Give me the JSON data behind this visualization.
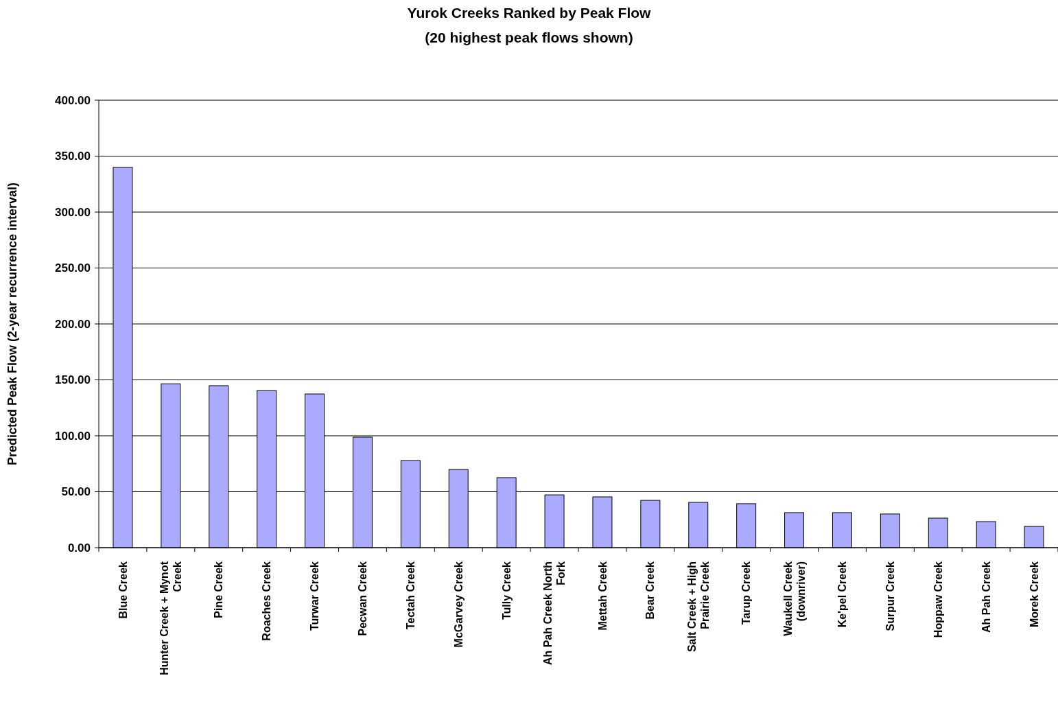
{
  "chart_data": {
    "type": "bar",
    "title": "Yurok Creeks Ranked by Peak Flow",
    "subtitle": "(20 highest peak flows shown)",
    "ylabel": "Predicted Peak Flow (2-year recurrence interval)",
    "categories": [
      "Blue Creek",
      "Hunter Creek + Mynot Creek",
      "Pine Creek",
      "Roaches Creek",
      "Turwar Creek",
      "Pecwan Creek",
      "Tectah Creek",
      "McGarvey Creek",
      "Tully Creek",
      "Ah Pah Creek North Fork",
      "Mettah Creek",
      "Bear Creek",
      "Salt Creek + High Prairie Creek",
      "Tarup Creek",
      "Waukell Creek (downriver)",
      "Ke'pel Creek",
      "Surpur Creek",
      "Hoppaw Creek",
      "Ah Pah Creek",
      "Morek Creek"
    ],
    "values": [
      340,
      146.5,
      144.8,
      140.5,
      137.4,
      98.8,
      77.9,
      69.9,
      62.6,
      47.2,
      45.4,
      42.3,
      40.5,
      39.3,
      31.3,
      31.3,
      30.1,
      26.4,
      23.3,
      19
    ],
    "color": "#aaaaff",
    "ylim": [
      0,
      400
    ],
    "yticks": [
      {
        "value": 0,
        "label": "0.00"
      },
      {
        "value": 50,
        "label": "50.00"
      },
      {
        "value": 100,
        "label": "100.00"
      },
      {
        "value": 150,
        "label": "150.00"
      },
      {
        "value": 200,
        "label": "200.00"
      },
      {
        "value": 250,
        "label": "250.00"
      },
      {
        "value": 300,
        "label": "300.00"
      },
      {
        "value": 350,
        "label": "350.00"
      },
      {
        "value": 400,
        "label": "400.00"
      }
    ],
    "grid": "y"
  }
}
